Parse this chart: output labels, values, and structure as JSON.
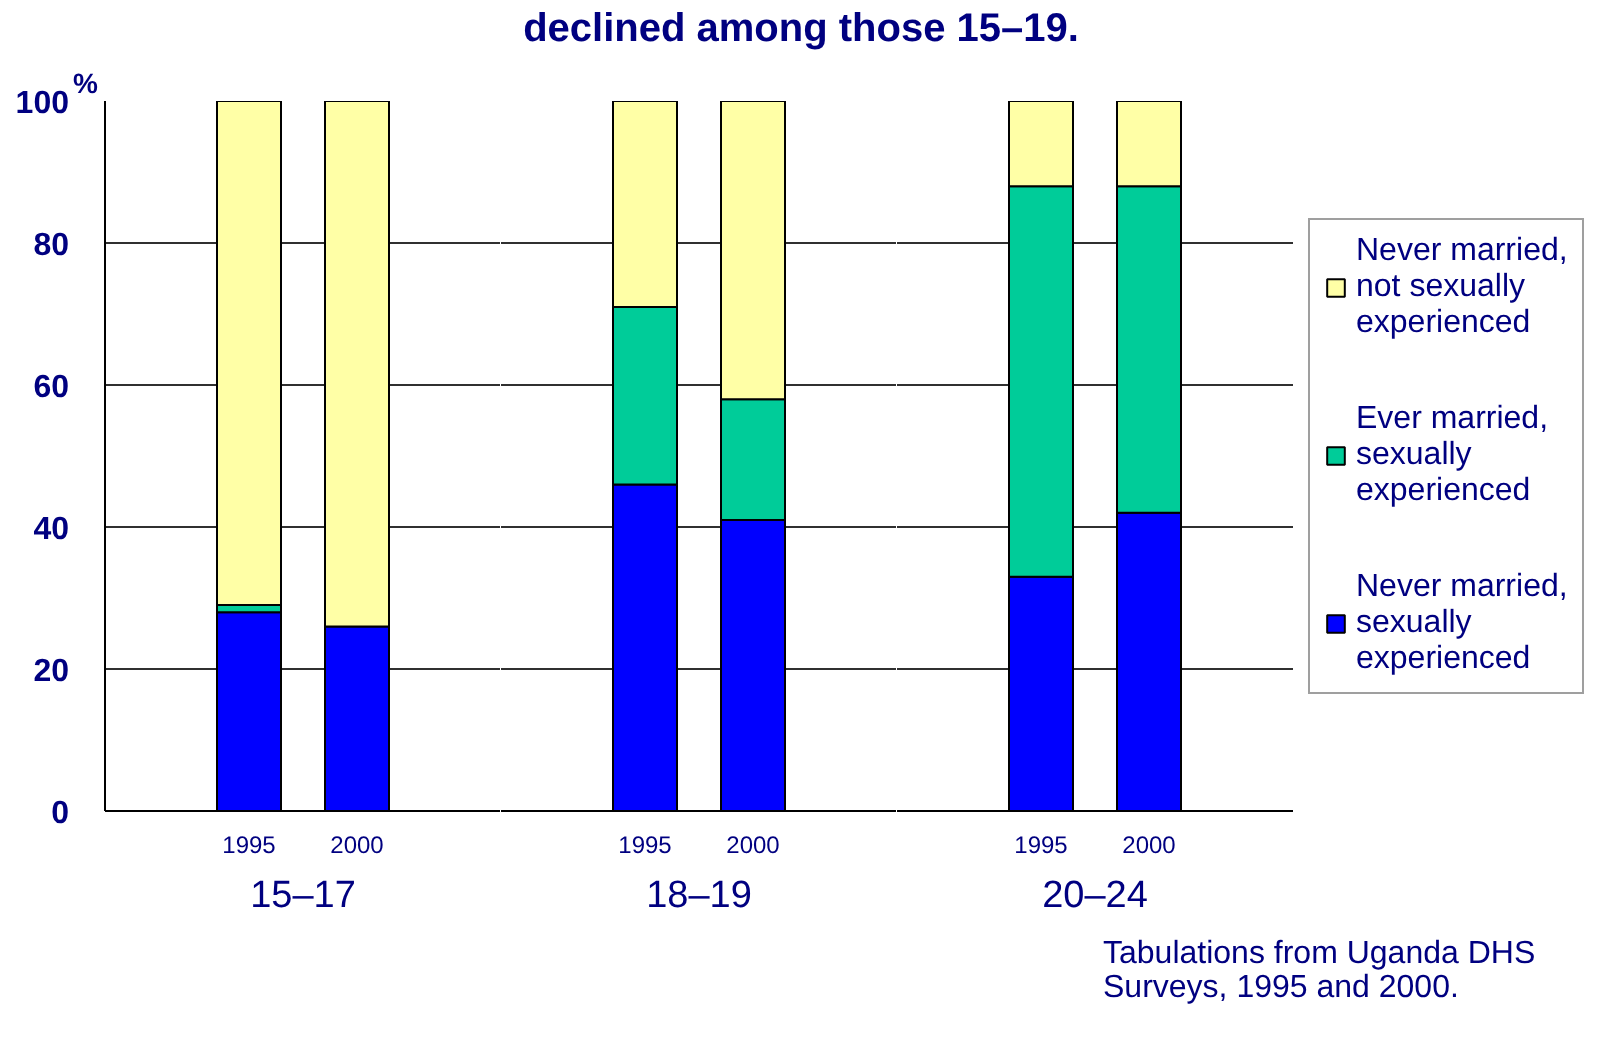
{
  "chart_data": [
    {
      "type": "bar",
      "ylabel": "%",
      "xlabel": "15–17",
      "categories": [
        "1995",
        "2000"
      ],
      "stacked": true,
      "series": [
        {
          "color": "#0000ff",
          "values": [
            28,
            26
          ]
        },
        {
          "color": "#00cc99",
          "values": [
            1,
            null
          ]
        },
        {
          "color": "#ffffa6",
          "values": [
            71,
            74
          ]
        }
      ],
      "ylim": [
        0,
        100
      ],
      "yticks": [
        0,
        20,
        40,
        60,
        80,
        100
      ],
      "grid": "y"
    },
    {
      "type": "bar",
      "title": "declined among those 15–19.",
      "xlabel": "18–19",
      "categories": [
        "1995",
        "2000"
      ],
      "stacked": true,
      "series": [
        {
          "color": "#0000ff",
          "values": [
            46,
            41
          ]
        },
        {
          "color": "#00cc99",
          "values": [
            25,
            17
          ]
        },
        {
          "color": "#ffffa6",
          "values": [
            29,
            42
          ]
        }
      ],
      "ylim": [
        0,
        100
      ],
      "yticks": [
        0,
        20,
        40,
        60,
        80,
        100
      ],
      "grid": "y",
      "tick_labels": "x"
    },
    {
      "type": "bar",
      "xlabel": "20–24",
      "categories": [
        "1995",
        "2000"
      ],
      "stacked": true,
      "series": [
        {
          "name": "Never married, sexually experienced",
          "color": "#0000ff",
          "values": [
            33,
            42
          ]
        },
        {
          "name": "Ever married, sexually experienced",
          "color": "#00cc99",
          "values": [
            55,
            46
          ]
        },
        {
          "name": "Never married, not sexually experienced",
          "color": "#ffffa6",
          "values": [
            12,
            12
          ]
        }
      ],
      "ylim": [
        0,
        100
      ],
      "yticks": [
        0,
        20,
        40,
        60,
        80,
        100
      ],
      "grid": "y",
      "tick_labels": "x",
      "legend": "right",
      "annotations": [
        "Tabulations from Uganda DHS Surveys, 1995 and 2000."
      ]
    }
  ]
}
